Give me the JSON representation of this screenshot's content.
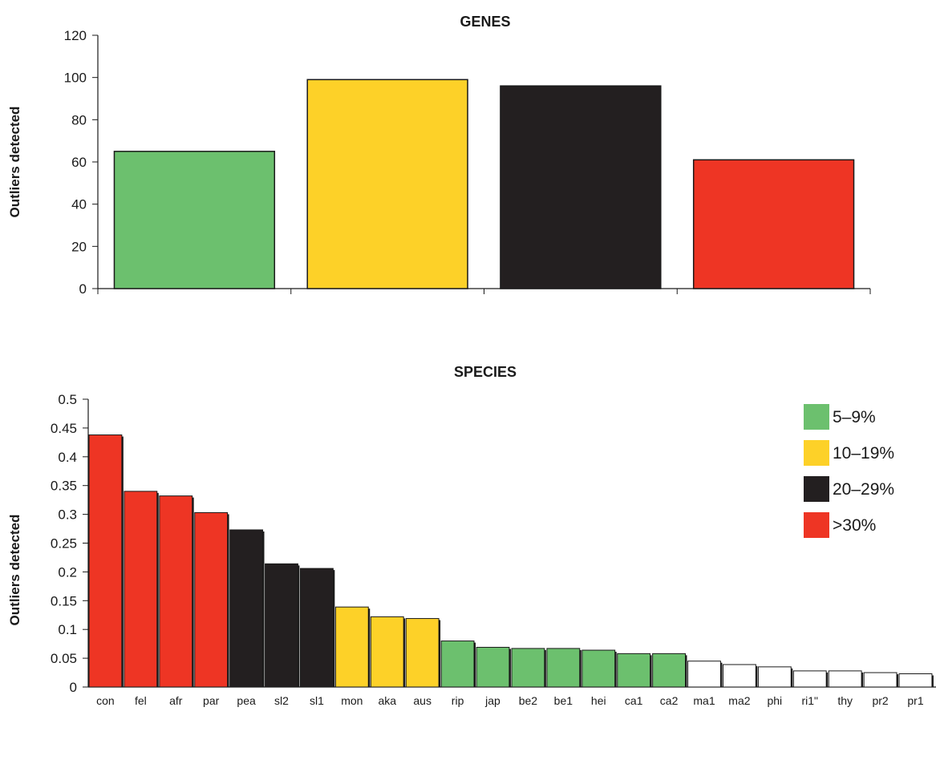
{
  "chart_data": [
    {
      "type": "bar",
      "title": "GENES",
      "xlabel": "",
      "ylabel": "Outliers detected",
      "ylim": [
        0,
        120
      ],
      "yticks": [
        "0",
        "20",
        "40",
        "60",
        "80",
        "100",
        "120"
      ],
      "categories": [
        "",
        "",
        "",
        ""
      ],
      "values": [
        65,
        99,
        96,
        61
      ],
      "colors": [
        "#6cc06e",
        "#fdd128",
        "#231f20",
        "#ee3524"
      ],
      "grid": false
    },
    {
      "type": "bar",
      "title": "SPECIES",
      "xlabel": "",
      "ylabel": "Outliers detected",
      "ylim": [
        0,
        0.5
      ],
      "yticks": [
        "0",
        "0.05",
        "0.1",
        "0.15",
        "0.2",
        "0.25",
        "0.3",
        "0.35",
        "0.4",
        "0.45",
        "0.5"
      ],
      "categories": [
        "con",
        "fel",
        "afr",
        "par",
        "pea",
        "sl2",
        "sl1",
        "mon",
        "aka",
        "aus",
        "rip",
        "jap",
        "be2",
        "be1",
        "hei",
        "ca1",
        "ca2",
        "ma1",
        "ma2",
        "phi",
        "ri1\"",
        "thy",
        "pr2",
        "pr1"
      ],
      "values": [
        0.438,
        0.34,
        0.332,
        0.303,
        0.273,
        0.214,
        0.206,
        0.139,
        0.122,
        0.119,
        0.08,
        0.069,
        0.067,
        0.067,
        0.064,
        0.058,
        0.058,
        0.045,
        0.039,
        0.035,
        0.028,
        0.028,
        0.025,
        0.023
      ],
      "colors": [
        "#ee3524",
        "#ee3524",
        "#ee3524",
        "#ee3524",
        "#231f20",
        "#231f20",
        "#231f20",
        "#fdd128",
        "#fdd128",
        "#fdd128",
        "#6cc06e",
        "#6cc06e",
        "#6cc06e",
        "#6cc06e",
        "#6cc06e",
        "#6cc06e",
        "#6cc06e",
        "#ffffff",
        "#ffffff",
        "#ffffff",
        "#ffffff",
        "#ffffff",
        "#ffffff",
        "#ffffff"
      ],
      "legend": {
        "placement": "top-right",
        "entries": [
          {
            "label": "5–9%",
            "color": "#6cc06e"
          },
          {
            "label": "10–19%",
            "color": "#fdd128"
          },
          {
            "label": "20–29%",
            "color": "#231f20"
          },
          {
            "label": ">30%",
            "color": "#ee3524"
          }
        ]
      },
      "grid": false
    }
  ]
}
